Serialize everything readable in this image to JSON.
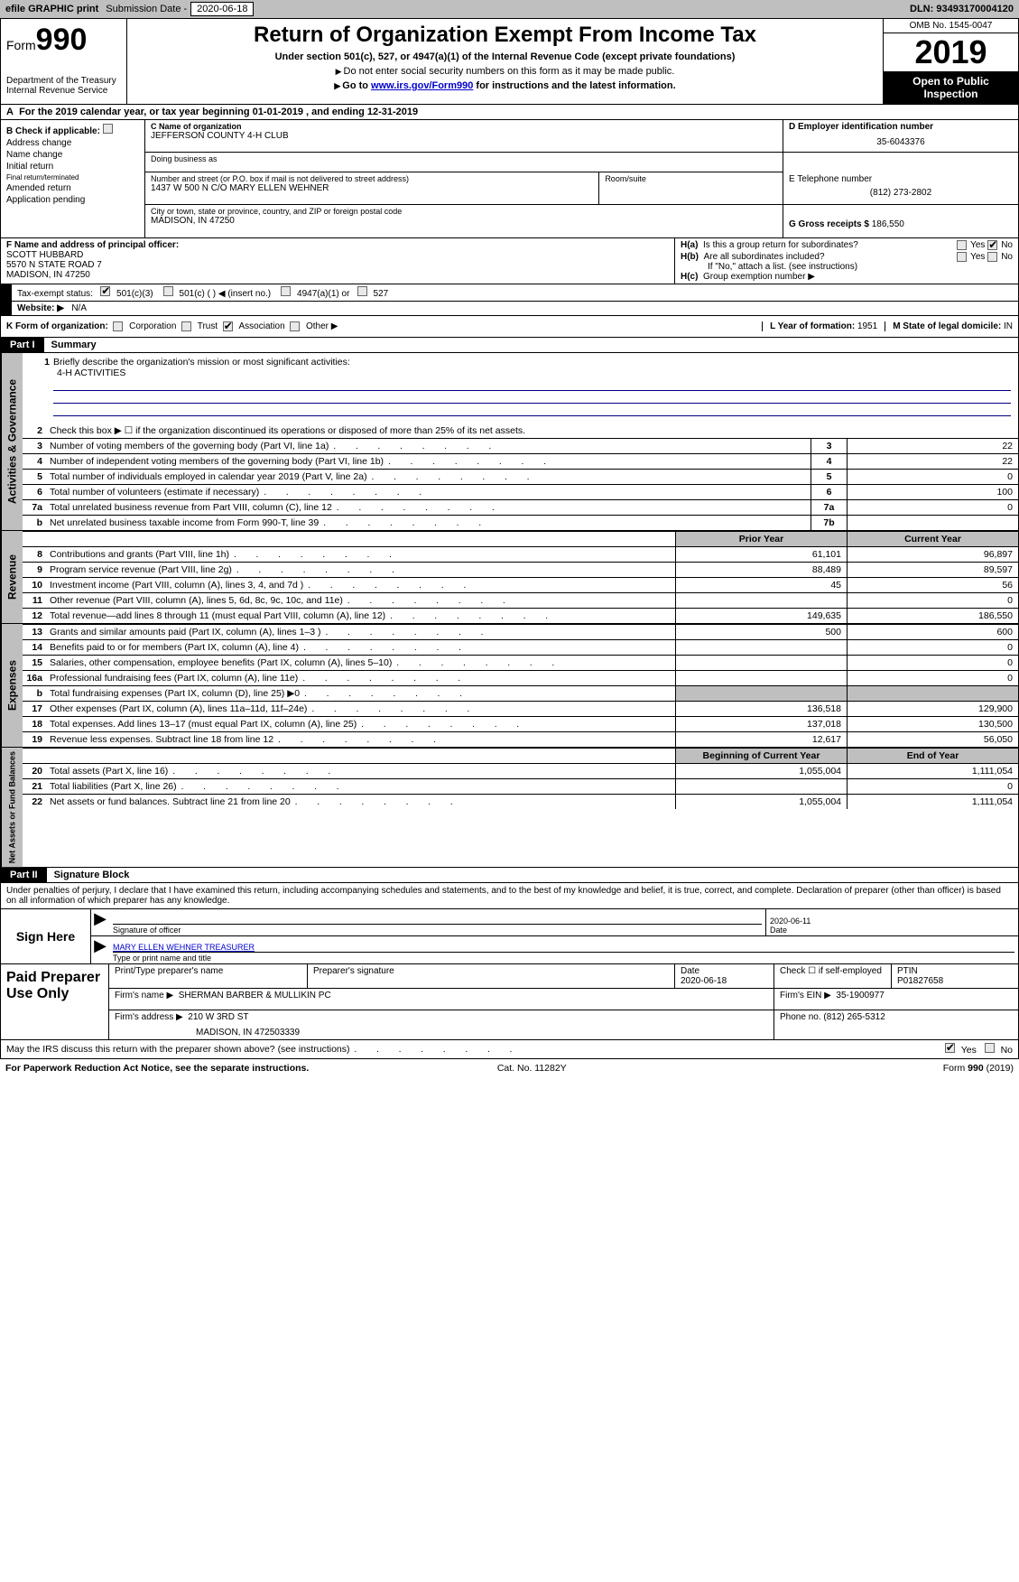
{
  "topbar": {
    "efile_label": "efile GRAPHIC print",
    "subdate_label": "Submission Date - ",
    "subdate_value": "2020-06-18",
    "dln_label": "DLN: ",
    "dln_value": "93493170004120"
  },
  "header": {
    "form_prefix": "Form",
    "form_number": "990",
    "dept": "Department of the Treasury",
    "irs": "Internal Revenue Service",
    "title": "Return of Organization Exempt From Income Tax",
    "sub1": "Under section 501(c), 527, or 4947(a)(1) of the Internal Revenue Code (except private foundations)",
    "sub2": "Do not enter social security numbers on this form as it may be made public.",
    "sub3_pre": "Go to ",
    "sub3_link": "www.irs.gov/Form990",
    "sub3_post": " for instructions and the latest information.",
    "omb": "OMB No. 1545-0047",
    "year": "2019",
    "open_public": "Open to Public Inspection"
  },
  "rowA": {
    "text_pre": "For the 2019 calendar year, or tax year beginning ",
    "begin": "01-01-2019",
    "mid": " , and ending ",
    "end": "12-31-2019"
  },
  "boxB": {
    "label": "Check if applicable:",
    "items": [
      "Address change",
      "Name change",
      "Initial return",
      "Final return/terminated",
      "Amended return",
      "Application pending"
    ]
  },
  "boxC": {
    "name_lbl": "C Name of organization",
    "name_val": "JEFFERSON COUNTY 4-H CLUB",
    "dba_lbl": "Doing business as",
    "dba_val": "",
    "addr_lbl": "Number and street (or P.O. box if mail is not delivered to street address)",
    "addr_val": "1437 W 500 N C/O MARY ELLEN WEHNER",
    "room_lbl": "Room/suite",
    "room_val": "",
    "city_lbl": "City or town, state or province, country, and ZIP or foreign postal code",
    "city_val": "MADISON, IN  47250"
  },
  "boxD": {
    "lbl": "D Employer identification number",
    "val": "35-6043376"
  },
  "boxE": {
    "lbl": "E Telephone number",
    "val": "(812) 273-2802"
  },
  "boxG": {
    "lbl": "G Gross receipts $ ",
    "val": "186,550"
  },
  "boxF": {
    "lbl": "F Name and address of principal officer:",
    "name": "SCOTT HUBBARD",
    "addr1": "5570 N STATE ROAD 7",
    "addr2": "MADISON, IN  47250"
  },
  "boxH": {
    "ha_lbl": "H(a)",
    "ha_txt": "Is this a group return for subordinates?",
    "hb_lbl": "H(b)",
    "hb_txt": "Are all subordinates included?",
    "hb_note": "If \"No,\" attach a list. (see instructions)",
    "hc_lbl": "H(c)",
    "hc_txt": "Group exemption number ▶",
    "yes": "Yes",
    "no": "No"
  },
  "rowI": {
    "lbl": "Tax-exempt status:",
    "o1": "501(c)(3)",
    "o2": "501(c) (  ) ◀ (insert no.)",
    "o3": "4947(a)(1) or",
    "o4": "527"
  },
  "rowJ": {
    "lbl": "Website: ▶",
    "val": "N/A"
  },
  "rowK": {
    "lbl": "K Form of organization:",
    "opts": [
      "Corporation",
      "Trust",
      "Association",
      "Other ▶"
    ],
    "checked_idx": 2,
    "l_lbl": "L Year of formation: ",
    "l_val": "1951",
    "m_lbl": "M State of legal domicile: ",
    "m_val": "IN"
  },
  "part1": {
    "label": "Part I",
    "title": "Summary"
  },
  "mission": {
    "line1_num": "1",
    "line1_txt": "Briefly describe the organization's mission or most significant activities:",
    "value": "4-H ACTIVITIES"
  },
  "gov_lines": [
    {
      "num": "2",
      "desc": "Check this box ▶ ☐ if the organization discontinued its operations or disposed of more than 25% of its net assets.",
      "idx": "",
      "val": "",
      "noval": true
    },
    {
      "num": "3",
      "desc": "Number of voting members of the governing body (Part VI, line 1a)",
      "idx": "3",
      "val": "22"
    },
    {
      "num": "4",
      "desc": "Number of independent voting members of the governing body (Part VI, line 1b)",
      "idx": "4",
      "val": "22"
    },
    {
      "num": "5",
      "desc": "Total number of individuals employed in calendar year 2019 (Part V, line 2a)",
      "idx": "5",
      "val": "0"
    },
    {
      "num": "6",
      "desc": "Total number of volunteers (estimate if necessary)",
      "idx": "6",
      "val": "100"
    },
    {
      "num": "7a",
      "desc": "Total unrelated business revenue from Part VIII, column (C), line 12",
      "idx": "7a",
      "val": "0"
    },
    {
      "num": "b",
      "desc": "Net unrelated business taxable income from Form 990-T, line 39",
      "idx": "7b",
      "val": ""
    }
  ],
  "col_hdrs": {
    "prior": "Prior Year",
    "current": "Current Year",
    "boc": "Beginning of Current Year",
    "eoy": "End of Year"
  },
  "revenue_lines": [
    {
      "num": "8",
      "desc": "Contributions and grants (Part VIII, line 1h)",
      "v1": "61,101",
      "v2": "96,897"
    },
    {
      "num": "9",
      "desc": "Program service revenue (Part VIII, line 2g)",
      "v1": "88,489",
      "v2": "89,597"
    },
    {
      "num": "10",
      "desc": "Investment income (Part VIII, column (A), lines 3, 4, and 7d )",
      "v1": "45",
      "v2": "56"
    },
    {
      "num": "11",
      "desc": "Other revenue (Part VIII, column (A), lines 5, 6d, 8c, 9c, 10c, and 11e)",
      "v1": "",
      "v2": "0"
    },
    {
      "num": "12",
      "desc": "Total revenue—add lines 8 through 11 (must equal Part VIII, column (A), line 12)",
      "v1": "149,635",
      "v2": "186,550"
    }
  ],
  "expense_lines": [
    {
      "num": "13",
      "desc": "Grants and similar amounts paid (Part IX, column (A), lines 1–3 )",
      "v1": "500",
      "v2": "600"
    },
    {
      "num": "14",
      "desc": "Benefits paid to or for members (Part IX, column (A), line 4)",
      "v1": "",
      "v2": "0"
    },
    {
      "num": "15",
      "desc": "Salaries, other compensation, employee benefits (Part IX, column (A), lines 5–10)",
      "v1": "",
      "v2": "0"
    },
    {
      "num": "16a",
      "desc": "Professional fundraising fees (Part IX, column (A), line 11e)",
      "v1": "",
      "v2": "0"
    },
    {
      "num": "b",
      "desc": "Total fundraising expenses (Part IX, column (D), line 25) ▶0",
      "v1": "",
      "v2": "",
      "shade": true
    },
    {
      "num": "17",
      "desc": "Other expenses (Part IX, column (A), lines 11a–11d, 11f–24e)",
      "v1": "136,518",
      "v2": "129,900"
    },
    {
      "num": "18",
      "desc": "Total expenses. Add lines 13–17 (must equal Part IX, column (A), line 25)",
      "v1": "137,018",
      "v2": "130,500"
    },
    {
      "num": "19",
      "desc": "Revenue less expenses. Subtract line 18 from line 12",
      "v1": "12,617",
      "v2": "56,050"
    }
  ],
  "net_lines": [
    {
      "num": "20",
      "desc": "Total assets (Part X, line 16)",
      "v1": "1,055,004",
      "v2": "1,111,054"
    },
    {
      "num": "21",
      "desc": "Total liabilities (Part X, line 26)",
      "v1": "",
      "v2": "0"
    },
    {
      "num": "22",
      "desc": "Net assets or fund balances. Subtract line 21 from line 20",
      "v1": "1,055,004",
      "v2": "1,111,054"
    }
  ],
  "vtabs": {
    "gov": "Activities & Governance",
    "rev": "Revenue",
    "exp": "Expenses",
    "net": "Net Assets or Fund Balances"
  },
  "part2": {
    "label": "Part II",
    "title": "Signature Block"
  },
  "perjury": "Under penalties of perjury, I declare that I have examined this return, including accompanying schedules and statements, and to the best of my knowledge and belief, it is true, correct, and complete. Declaration of preparer (other than officer) is based on all information of which preparer has any knowledge.",
  "sign": {
    "here": "Sign Here",
    "sig_lbl": "Signature of officer",
    "date_val": "2020-06-11",
    "date_lbl": "Date",
    "name_val": "MARY ELLEN WEHNER  TREASURER",
    "name_lbl": "Type or print name and title"
  },
  "paid": {
    "left": "Paid Preparer Use Only",
    "h1": "Print/Type preparer's name",
    "h2": "Preparer's signature",
    "h3": "Date",
    "h3v": "2020-06-18",
    "h4": "Check ☐ if self-employed",
    "h5": "PTIN",
    "h5v": "P01827658",
    "firm_name_lbl": "Firm's name    ▶",
    "firm_name_val": "SHERMAN BARBER & MULLIKIN PC",
    "firm_ein_lbl": "Firm's EIN ▶",
    "firm_ein_val": "35-1900977",
    "firm_addr_lbl": "Firm's address ▶",
    "firm_addr_val": "210 W 3RD ST",
    "firm_addr_val2": "MADISON, IN 472503339",
    "phone_lbl": "Phone no. ",
    "phone_val": "(812) 265-5312"
  },
  "discuss": {
    "txt": "May the IRS discuss this return with the preparer shown above? (see instructions)",
    "yes": "Yes",
    "no": "No"
  },
  "footer": {
    "left": "For Paperwork Reduction Act Notice, see the separate instructions.",
    "mid": "Cat. No. 11282Y",
    "right_pre": "Form ",
    "right_form": "990",
    "right_post": " (2019)"
  }
}
